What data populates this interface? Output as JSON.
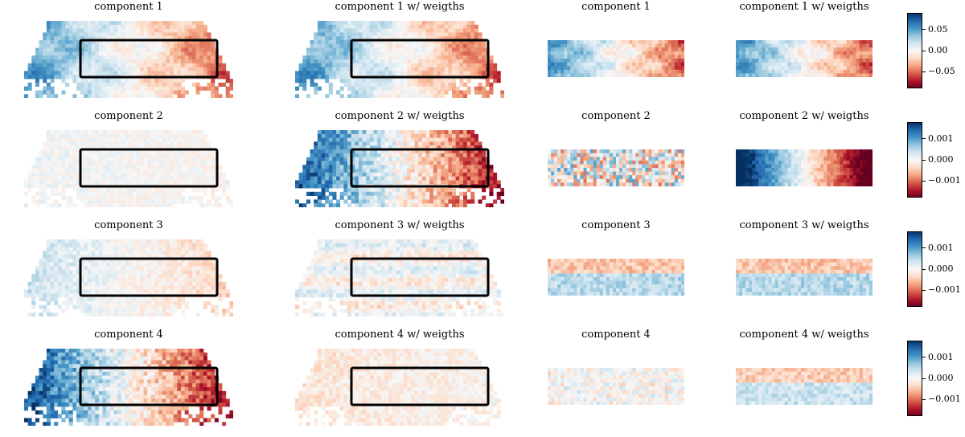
{
  "chart_data": {
    "type": "heatmap",
    "colormap": "RdBu",
    "colormap_colors": {
      "negative": "#67001f",
      "zero": "#f7f7f7",
      "positive": "#053061"
    },
    "row_titles": [
      [
        "component 1",
        "component 1 w/ weigths",
        "component 1",
        "component 1 w/ weigths"
      ],
      [
        "component 2",
        "component 2 w/ weigths",
        "component 2",
        "component 2 w/ weigths"
      ],
      [
        "component 3",
        "component 3 w/ weigths",
        "component 3",
        "component 3 w/ weigths"
      ],
      [
        "component 4",
        "component 4 w/ weigths",
        "component 4",
        "component 4 w/ weigths"
      ]
    ],
    "colorbars": [
      {
        "vmin": -0.09,
        "vmax": 0.09,
        "ticks": [
          0.05,
          0.0,
          -0.05
        ],
        "tick_labels": [
          "0.05",
          "0.00",
          "−0.05"
        ]
      },
      {
        "vmin": -0.0018,
        "vmax": 0.0018,
        "ticks": [
          0.001,
          0.0,
          -0.001
        ],
        "tick_labels": [
          "0.001",
          "0.000",
          "−0.001"
        ]
      },
      {
        "vmin": -0.0018,
        "vmax": 0.0018,
        "ticks": [
          0.001,
          0.0,
          -0.001
        ],
        "tick_labels": [
          "0.001",
          "0.000",
          "−0.001"
        ]
      },
      {
        "vmin": -0.0018,
        "vmax": 0.0018,
        "ticks": [
          0.001,
          0.0,
          -0.001
        ],
        "tick_labels": [
          "0.001",
          "0.000",
          "−0.001"
        ]
      }
    ],
    "pattern_description": [
      {
        "full": "left blue, right red gradient",
        "full_weighted": "left blue, right red gradient",
        "crop": "left blue, right red",
        "crop_weighted": "left blue, right red"
      },
      {
        "full": "near zero, faint texture",
        "full_weighted": "strong left blue, strong right red",
        "crop": "noisy red/blue speckle",
        "crop_weighted": "strong left blue, strong right red"
      },
      {
        "full": "left light blue, right light red",
        "full_weighted": "near zero, horizontal banding",
        "crop": "red top band, blue lower band",
        "crop_weighted": "red top band, blue lower band"
      },
      {
        "full": "left blue, right red gradient",
        "full_weighted": "near zero, light red",
        "crop": "faint diagonal texture",
        "crop_weighted": "red band, blue lower band"
      }
    ]
  }
}
